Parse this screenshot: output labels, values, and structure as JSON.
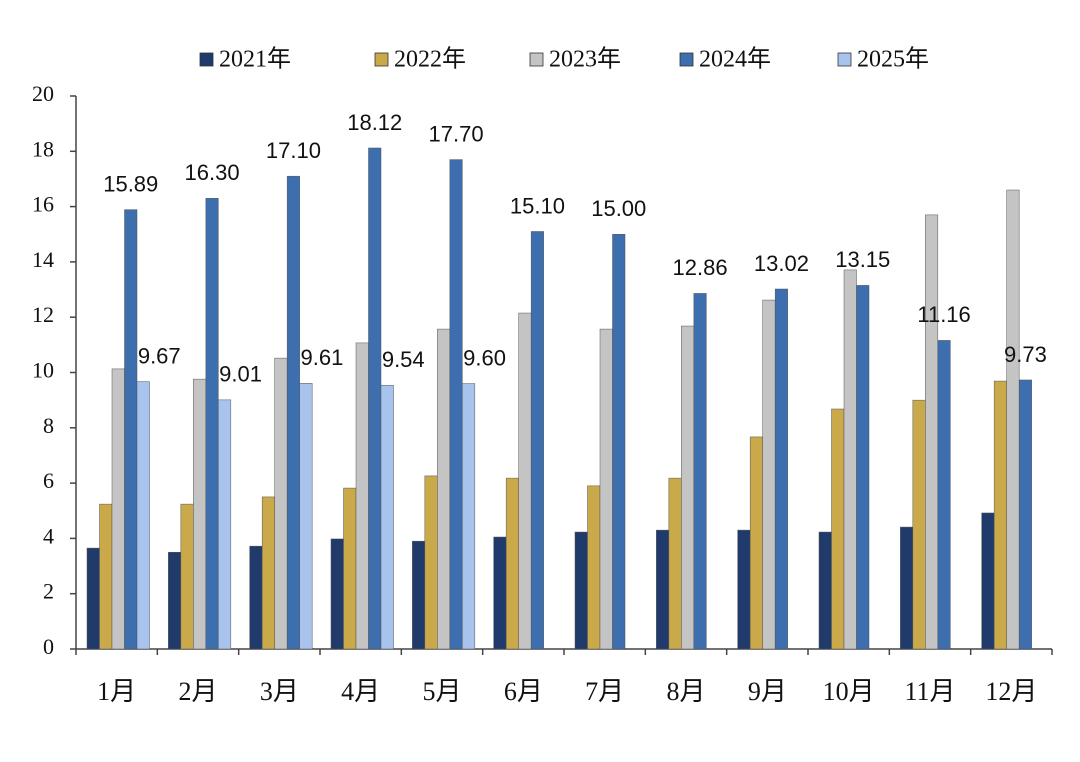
{
  "chart_data": {
    "type": "bar",
    "categories": [
      "1月",
      "2月",
      "3月",
      "4月",
      "5月",
      "6月",
      "7月",
      "8月",
      "9月",
      "10月",
      "11月",
      "12月"
    ],
    "series": [
      {
        "name": "2021年",
        "color": "#1f3a6b",
        "values": [
          3.65,
          3.5,
          3.72,
          3.98,
          3.9,
          4.05,
          4.23,
          4.3,
          4.3,
          4.23,
          4.41,
          4.92
        ]
      },
      {
        "name": "2022年",
        "color": "#c9a94a",
        "values": [
          5.24,
          5.24,
          5.5,
          5.82,
          6.26,
          6.18,
          5.9,
          6.18,
          7.67,
          8.68,
          9.0,
          9.69
        ]
      },
      {
        "name": "2023年",
        "color": "#c4c4c4",
        "values": [
          10.13,
          9.76,
          10.52,
          11.07,
          11.57,
          12.15,
          11.57,
          11.68,
          12.62,
          13.71,
          15.7,
          16.6
        ]
      },
      {
        "name": "2024年",
        "color": "#3d6fae",
        "values": [
          15.89,
          16.3,
          17.1,
          18.12,
          17.7,
          15.1,
          15.0,
          12.86,
          13.02,
          13.15,
          11.16,
          9.73
        ],
        "value_labels": [
          "15.89",
          "16.30",
          "17.10",
          "18.12",
          "17.70",
          "15.10",
          "15.00",
          "12.86",
          "13.02",
          "13.15",
          "11.16",
          "9.73"
        ]
      },
      {
        "name": "2025年",
        "color": "#a8c4ee",
        "values": [
          9.67,
          9.01,
          9.61,
          9.54,
          9.6,
          null,
          null,
          null,
          null,
          null,
          null,
          null
        ],
        "value_labels": [
          "9.67",
          "9.01",
          "9.61",
          "9.54",
          "9.60",
          null,
          null,
          null,
          null,
          null,
          null,
          null
        ]
      }
    ],
    "ylim": [
      0,
      20
    ],
    "yticks": [
      0,
      2,
      4,
      6,
      8,
      10,
      12,
      14,
      16,
      18,
      20
    ],
    "grid": false
  }
}
